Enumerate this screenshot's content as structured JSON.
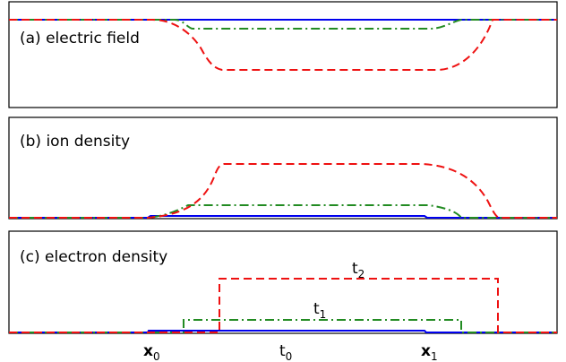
{
  "panels": [
    {
      "label": "(a) electric field"
    },
    {
      "label": "(b) ion density"
    },
    {
      "label": "(c) electron density"
    }
  ],
  "curve_labels": {
    "t1": {
      "base": "t",
      "sub": "1"
    },
    "t2": {
      "base": "t",
      "sub": "2"
    }
  },
  "axis_labels": {
    "x0": {
      "base": "x",
      "sub": "0"
    },
    "t0": {
      "base": "t",
      "sub": "0"
    },
    "x1": {
      "base": "x",
      "sub": "1"
    }
  },
  "colors": {
    "t0": "#0000ee",
    "t1": "#228b22",
    "t2": "#ee1111",
    "frame": "#000000"
  }
}
